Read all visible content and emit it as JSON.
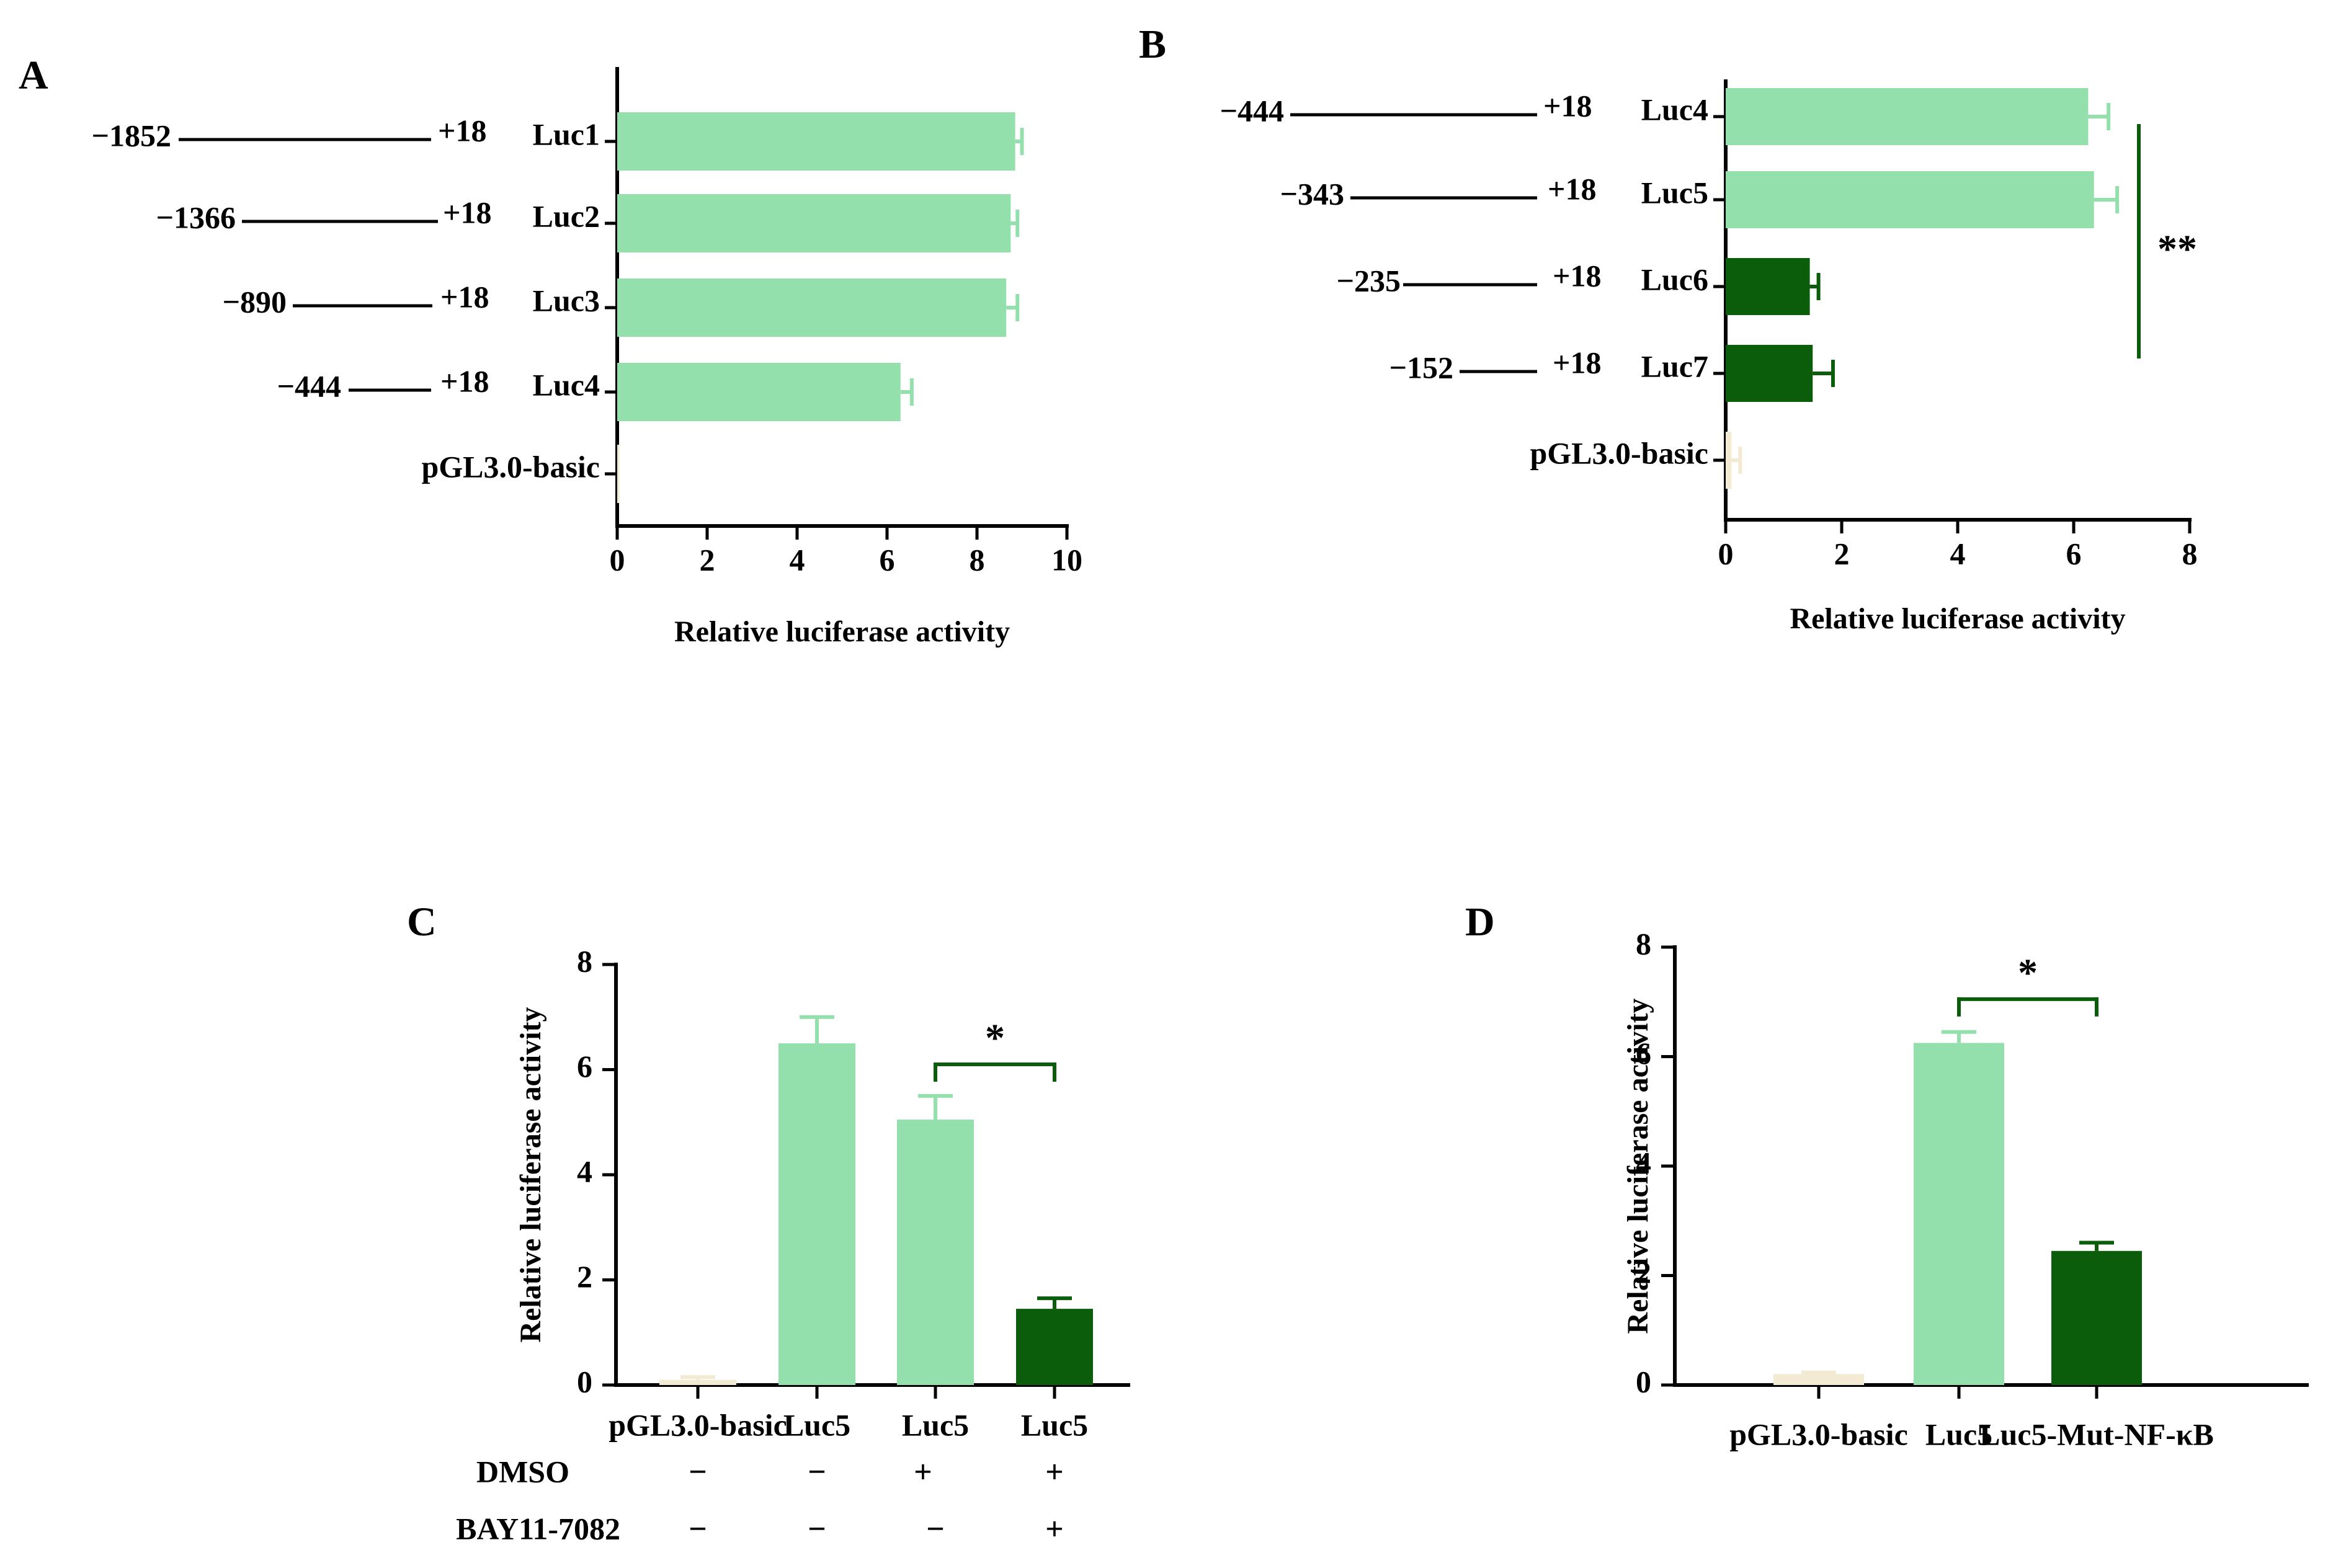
{
  "colors": {
    "light": "#94e0ad",
    "dark": "#0b5c0b",
    "basic": "#f2ead2",
    "axis": "#000000"
  },
  "chart_data": [
    {
      "panel": "A",
      "type": "bar",
      "orientation": "horizontal",
      "xlabel": "Relative luciferase activity",
      "xlim": [
        0,
        10
      ],
      "xticks": [
        "0",
        "2",
        "4",
        "6",
        "8",
        "10"
      ],
      "categories": [
        "Luc1",
        "Luc2",
        "Luc3",
        "Luc4",
        "pGL3.0-basic"
      ],
      "values": [
        8.85,
        8.75,
        8.65,
        6.3,
        0.05
      ],
      "errors": [
        0.15,
        0.15,
        0.25,
        0.25,
        0.0
      ],
      "bar_colors": [
        "light",
        "light",
        "light",
        "light",
        "basic"
      ],
      "constructs": [
        {
          "start": "−1852",
          "end": "+18",
          "name": "Luc1"
        },
        {
          "start": "−1366",
          "end": "+18",
          "name": "Luc2"
        },
        {
          "start": "−890",
          "end": "+18",
          "name": "Luc3"
        },
        {
          "start": "−444",
          "end": "+18",
          "name": "Luc4"
        },
        {
          "start": "",
          "end": "",
          "name": "pGL3.0-basic"
        }
      ]
    },
    {
      "panel": "B",
      "type": "bar",
      "orientation": "horizontal",
      "xlabel": "Relative luciferase activity",
      "xlim": [
        0,
        8
      ],
      "xticks": [
        "0",
        "2",
        "4",
        "6",
        "8"
      ],
      "categories": [
        "Luc4",
        "Luc5",
        "Luc6",
        "Luc7",
        "pGL3.0-basic"
      ],
      "values": [
        6.25,
        6.35,
        1.45,
        1.5,
        0.1
      ],
      "errors": [
        0.35,
        0.4,
        0.15,
        0.35,
        0.15
      ],
      "bar_colors": [
        "light",
        "light",
        "dark",
        "dark",
        "basic"
      ],
      "constructs": [
        {
          "start": "−444",
          "end": "+18",
          "name": "Luc4"
        },
        {
          "start": "−343",
          "end": "+18",
          "name": "Luc5"
        },
        {
          "start": "−235",
          "end": "+18",
          "name": "Luc6"
        },
        {
          "start": "−152",
          "end": "+18",
          "name": "Luc7"
        },
        {
          "start": "",
          "end": "",
          "name": "pGL3.0-basic"
        }
      ],
      "significance": {
        "label": "**",
        "from_category": "Luc4",
        "to_category": "Luc7"
      }
    },
    {
      "panel": "C",
      "type": "bar",
      "orientation": "vertical",
      "ylabel": "Relative luciferase activity",
      "ylim": [
        0,
        8
      ],
      "yticks": [
        "0",
        "2",
        "4",
        "6",
        "8"
      ],
      "categories": [
        "pGL3.0-basic",
        "Luc5",
        "Luc5",
        "Luc5"
      ],
      "values": [
        0.1,
        6.5,
        5.05,
        1.45
      ],
      "errors": [
        0.05,
        0.5,
        0.45,
        0.2
      ],
      "bar_colors": [
        "basic",
        "light",
        "light",
        "dark"
      ],
      "treatments": [
        {
          "name": "DMSO",
          "signs": [
            "−",
            "−",
            "+",
            "+"
          ]
        },
        {
          "name": "BAY11-7082",
          "signs": [
            "−",
            "−",
            "−",
            "+"
          ]
        }
      ],
      "significance": {
        "label": "*",
        "from_index": 2,
        "to_index": 3,
        "y": 6.1
      }
    },
    {
      "panel": "D",
      "type": "bar",
      "orientation": "vertical",
      "ylabel": "Relative luciferase activity",
      "ylim": [
        0,
        8
      ],
      "yticks": [
        "0",
        "2",
        "4",
        "6",
        "8"
      ],
      "categories": [
        "pGL3.0-basic",
        "Luc5",
        "Luc5-Mut-NF-κB"
      ],
      "values": [
        0.2,
        6.25,
        2.45
      ],
      "errors": [
        0.03,
        0.2,
        0.15
      ],
      "bar_colors": [
        "basic",
        "light",
        "dark"
      ],
      "significance": {
        "label": "*",
        "from_index": 1,
        "to_index": 2,
        "y": 7.05
      }
    }
  ]
}
